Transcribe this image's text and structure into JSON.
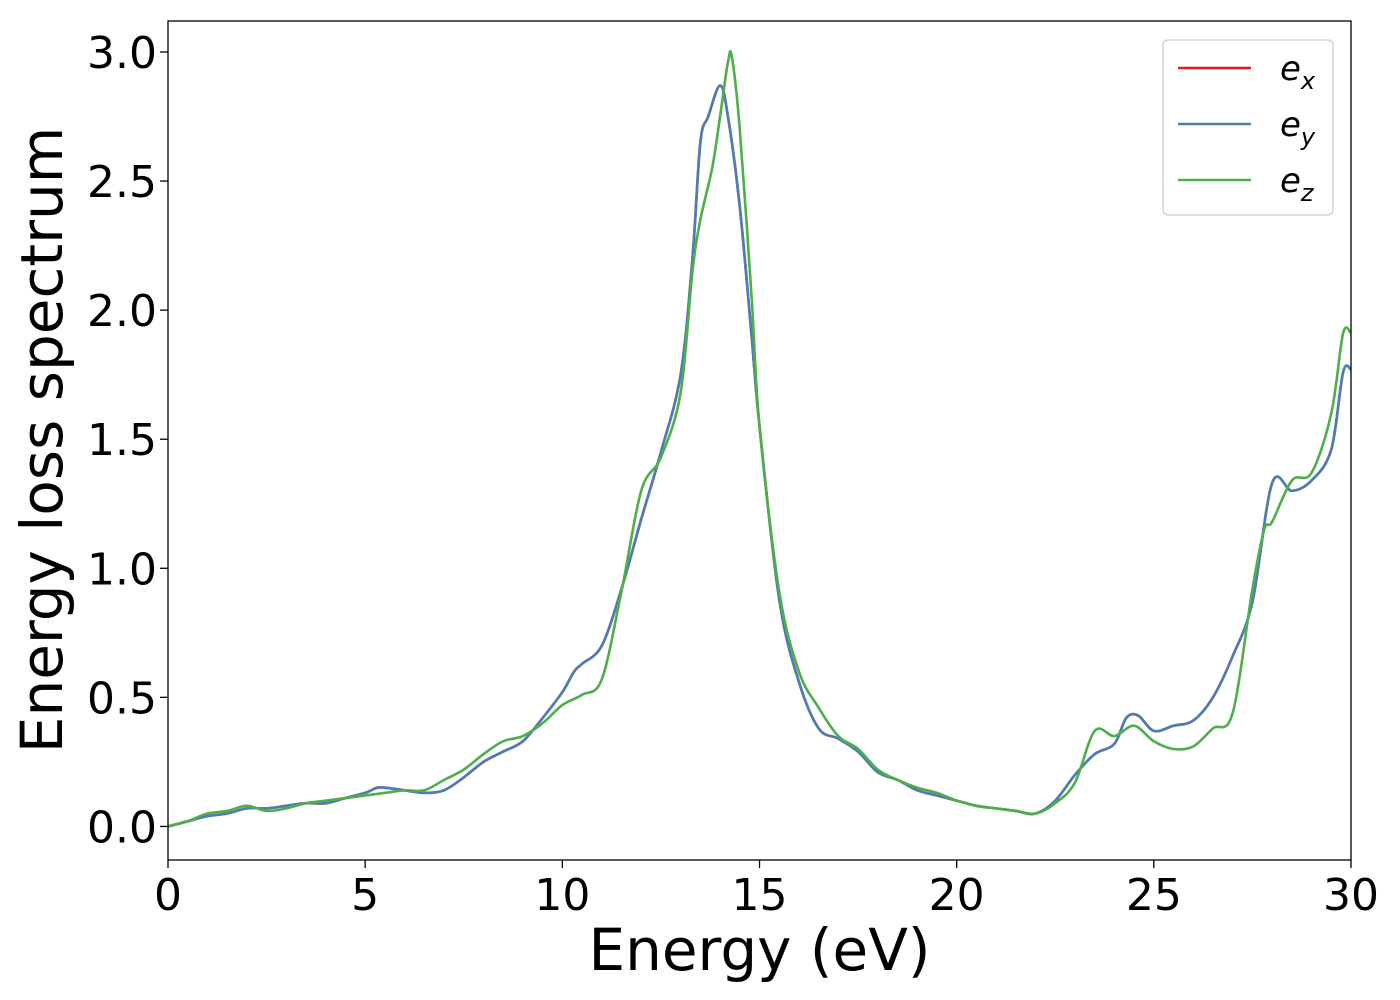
{
  "chart_data": {
    "type": "line",
    "xlabel": "Energy (eV)",
    "ylabel": "Energy loss spectrum",
    "xlim": [
      0,
      30
    ],
    "ylim": [
      -0.13,
      3.12
    ],
    "xticks": [
      0,
      5,
      10,
      15,
      20,
      25,
      30
    ],
    "yticks": [
      0.0,
      0.5,
      1.0,
      1.5,
      2.0,
      2.5,
      3.0
    ],
    "xtick_labels": [
      "0",
      "5",
      "10",
      "15",
      "20",
      "25",
      "30"
    ],
    "ytick_labels": [
      "0.0",
      "0.5",
      "1.0",
      "1.5",
      "2.0",
      "2.5",
      "3.0"
    ],
    "grid": false,
    "legend_position": "top-right",
    "series": [
      {
        "name": "e_x",
        "legend_base": "e",
        "legend_sub": "x",
        "color": "#e41a1c",
        "x": [
          0,
          0.5,
          1.0,
          1.5,
          2.0,
          2.5,
          3.0,
          3.5,
          4.0,
          4.5,
          5.0,
          5.3,
          5.5,
          6.0,
          6.5,
          7.0,
          7.5,
          8.0,
          8.5,
          9.0,
          9.5,
          10.0,
          10.3,
          10.5,
          11.0,
          11.5,
          12.0,
          12.5,
          13.0,
          13.3,
          13.5,
          13.7,
          14.0,
          14.2,
          14.5,
          14.8,
          15.0,
          15.5,
          16.0,
          16.5,
          17.0,
          17.5,
          18.0,
          18.5,
          19.0,
          19.5,
          20.0,
          20.5,
          21.0,
          21.5,
          22.0,
          22.5,
          23.0,
          23.5,
          24.0,
          24.3,
          24.6,
          25.0,
          25.5,
          26.0,
          26.5,
          27.0,
          27.5,
          28.0,
          28.5,
          29.0,
          29.5,
          29.8,
          30.0
        ],
        "y": [
          0.0,
          0.02,
          0.04,
          0.05,
          0.07,
          0.07,
          0.08,
          0.09,
          0.09,
          0.11,
          0.13,
          0.15,
          0.15,
          0.14,
          0.13,
          0.14,
          0.19,
          0.25,
          0.29,
          0.33,
          0.42,
          0.52,
          0.6,
          0.63,
          0.7,
          0.92,
          1.19,
          1.45,
          1.75,
          2.2,
          2.65,
          2.75,
          2.87,
          2.75,
          2.4,
          1.9,
          1.55,
          0.88,
          0.56,
          0.38,
          0.34,
          0.29,
          0.21,
          0.18,
          0.14,
          0.12,
          0.1,
          0.08,
          0.07,
          0.06,
          0.05,
          0.1,
          0.2,
          0.28,
          0.32,
          0.42,
          0.43,
          0.37,
          0.39,
          0.41,
          0.5,
          0.66,
          0.87,
          1.33,
          1.3,
          1.34,
          1.46,
          1.76,
          1.77
        ]
      },
      {
        "name": "e_y",
        "legend_base": "e",
        "legend_sub": "y",
        "color": "#4a7fb5",
        "x": [
          0,
          0.5,
          1.0,
          1.5,
          2.0,
          2.5,
          3.0,
          3.5,
          4.0,
          4.5,
          5.0,
          5.3,
          5.5,
          6.0,
          6.5,
          7.0,
          7.5,
          8.0,
          8.5,
          9.0,
          9.5,
          10.0,
          10.3,
          10.5,
          11.0,
          11.5,
          12.0,
          12.5,
          13.0,
          13.3,
          13.5,
          13.7,
          14.0,
          14.2,
          14.5,
          14.8,
          15.0,
          15.5,
          16.0,
          16.5,
          17.0,
          17.5,
          18.0,
          18.5,
          19.0,
          19.5,
          20.0,
          20.5,
          21.0,
          21.5,
          22.0,
          22.5,
          23.0,
          23.5,
          24.0,
          24.3,
          24.6,
          25.0,
          25.5,
          26.0,
          26.5,
          27.0,
          27.5,
          28.0,
          28.5,
          29.0,
          29.5,
          29.8,
          30.0
        ],
        "y": [
          0.0,
          0.02,
          0.04,
          0.05,
          0.07,
          0.07,
          0.08,
          0.09,
          0.09,
          0.11,
          0.13,
          0.15,
          0.15,
          0.14,
          0.13,
          0.14,
          0.19,
          0.25,
          0.29,
          0.33,
          0.42,
          0.52,
          0.6,
          0.63,
          0.7,
          0.92,
          1.19,
          1.45,
          1.75,
          2.2,
          2.65,
          2.75,
          2.87,
          2.75,
          2.4,
          1.9,
          1.55,
          0.88,
          0.56,
          0.38,
          0.34,
          0.29,
          0.21,
          0.18,
          0.14,
          0.12,
          0.1,
          0.08,
          0.07,
          0.06,
          0.05,
          0.1,
          0.2,
          0.28,
          0.32,
          0.42,
          0.43,
          0.37,
          0.39,
          0.41,
          0.5,
          0.66,
          0.87,
          1.33,
          1.3,
          1.34,
          1.46,
          1.76,
          1.77
        ]
      },
      {
        "name": "e_z",
        "legend_base": "e",
        "legend_sub": "z",
        "color": "#4daf4a",
        "x": [
          0,
          0.5,
          1.0,
          1.5,
          2.0,
          2.5,
          3.0,
          3.5,
          4.0,
          4.5,
          5.0,
          5.5,
          6.0,
          6.5,
          7.0,
          7.5,
          8.0,
          8.5,
          9.0,
          9.5,
          10.0,
          10.5,
          11.0,
          11.5,
          12.0,
          12.5,
          13.0,
          13.3,
          13.5,
          13.8,
          14.0,
          14.2,
          14.3,
          14.5,
          14.8,
          15.0,
          15.5,
          16.0,
          16.5,
          17.0,
          17.5,
          18.0,
          18.5,
          19.0,
          19.5,
          20.0,
          20.5,
          21.0,
          21.5,
          22.0,
          22.5,
          23.0,
          23.5,
          24.0,
          24.5,
          25.0,
          25.5,
          26.0,
          26.5,
          27.0,
          27.5,
          27.8,
          28.0,
          28.5,
          29.0,
          29.5,
          29.8,
          30.0
        ],
        "y": [
          0.0,
          0.02,
          0.05,
          0.06,
          0.08,
          0.06,
          0.07,
          0.09,
          0.1,
          0.11,
          0.12,
          0.13,
          0.14,
          0.14,
          0.18,
          0.22,
          0.28,
          0.33,
          0.35,
          0.4,
          0.47,
          0.51,
          0.57,
          0.91,
          1.3,
          1.43,
          1.68,
          2.15,
          2.35,
          2.55,
          2.75,
          2.96,
          2.98,
          2.7,
          2.05,
          1.55,
          0.91,
          0.6,
          0.46,
          0.35,
          0.3,
          0.22,
          0.18,
          0.15,
          0.13,
          0.1,
          0.08,
          0.07,
          0.06,
          0.05,
          0.09,
          0.17,
          0.37,
          0.35,
          0.39,
          0.33,
          0.3,
          0.31,
          0.38,
          0.44,
          0.92,
          1.15,
          1.18,
          1.34,
          1.37,
          1.6,
          1.91,
          1.91
        ]
      }
    ]
  }
}
